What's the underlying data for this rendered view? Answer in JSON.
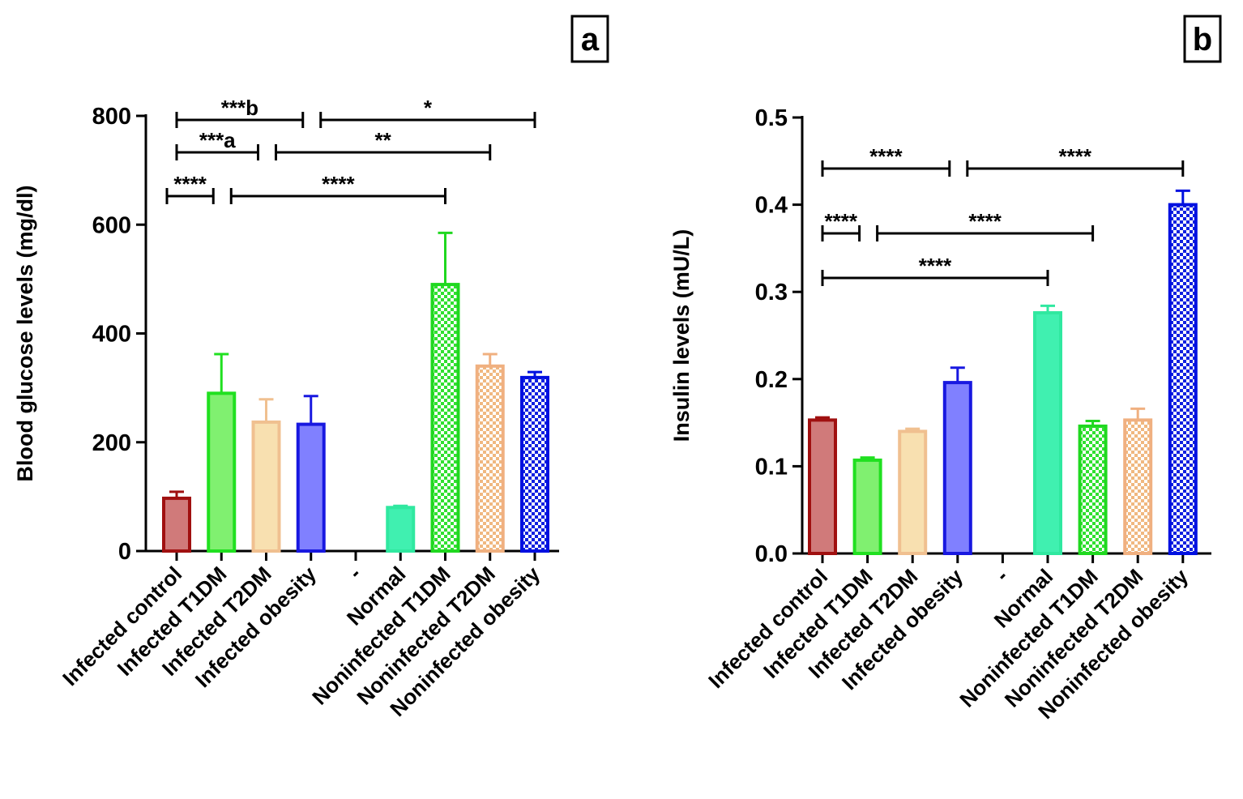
{
  "chart_data": [
    {
      "type": "bar",
      "panel": "a",
      "y_label": "Blood glucose levels (mg/dl)",
      "categories": [
        "Infected control",
        "Infected T1DM",
        "Infected T2DM",
        "Infected obesity",
        "-",
        "Normal",
        "Noninfected T1DM",
        "Noninfected T2DM",
        "Noninfected obesity"
      ],
      "values": [
        97,
        290,
        237,
        233,
        null,
        80,
        490,
        340,
        319
      ],
      "errors": [
        12,
        72,
        42,
        52,
        null,
        3,
        95,
        22,
        10
      ],
      "fills": [
        "#d07a7a",
        "#80f070",
        "#f8e0b0",
        "#8080ff",
        null,
        "#40f0b0",
        "#30e030",
        "#f0b880",
        "#1020e0"
      ],
      "edges": [
        "#a01010",
        "#20e020",
        "#f0c090",
        "#1818e0",
        null,
        "#30e8a0",
        "#20d820",
        "#f0b080",
        "#0010e0"
      ],
      "checkered": [
        false,
        false,
        false,
        false,
        false,
        false,
        true,
        true,
        true
      ],
      "ylim": [
        0,
        800
      ],
      "yticks": [
        0,
        200,
        400,
        600,
        800
      ],
      "annotations": [
        {
          "text": "***b",
          "from": 0,
          "to": 3
        },
        {
          "text": "*",
          "from": 3,
          "to": 8
        },
        {
          "text": "***a",
          "from": 0,
          "to": 2
        },
        {
          "text": "**",
          "from": 2,
          "to": 7
        },
        {
          "text": "****",
          "from": 0,
          "to": 1
        },
        {
          "text": "****",
          "from": 1,
          "to": 6
        }
      ]
    },
    {
      "type": "bar",
      "panel": "b",
      "y_label": "Insulin levels (mU/L)",
      "categories": [
        "Infected control",
        "Infected T1DM",
        "Infected T2DM",
        "Infected obesity",
        "-",
        "Normal",
        "Noninfected T1DM",
        "Noninfected T2DM",
        "Noninfected obesity"
      ],
      "values": [
        0.153,
        0.107,
        0.14,
        0.196,
        null,
        0.276,
        0.146,
        0.153,
        0.4
      ],
      "errors": [
        0.003,
        0.003,
        0.003,
        0.017,
        null,
        0.008,
        0.006,
        0.013,
        0.016
      ],
      "fills": [
        "#d07a7a",
        "#80f070",
        "#f8e0b0",
        "#8080ff",
        null,
        "#40f0b0",
        "#30e030",
        "#f0b880",
        "#1020e0"
      ],
      "edges": [
        "#a01010",
        "#20e020",
        "#f0c090",
        "#1818e0",
        null,
        "#30e8a0",
        "#20d820",
        "#f0b080",
        "#0010e0"
      ],
      "checkered": [
        false,
        false,
        false,
        false,
        false,
        false,
        true,
        true,
        true
      ],
      "ylim": [
        0,
        0.5
      ],
      "yticks": [
        {
          "value": 0,
          "label": "0.0"
        },
        0.1,
        0.2,
        0.3,
        0.4,
        0.5
      ],
      "annotations": [
        {
          "text": "****",
          "from": 0,
          "to": 3
        },
        {
          "text": "****",
          "from": 3,
          "to": 8
        },
        {
          "text": "****",
          "from": 0,
          "to": 1
        },
        {
          "text": "****",
          "from": 1,
          "to": 6
        },
        {
          "text": "****",
          "from": 0,
          "to": 5
        }
      ]
    }
  ]
}
